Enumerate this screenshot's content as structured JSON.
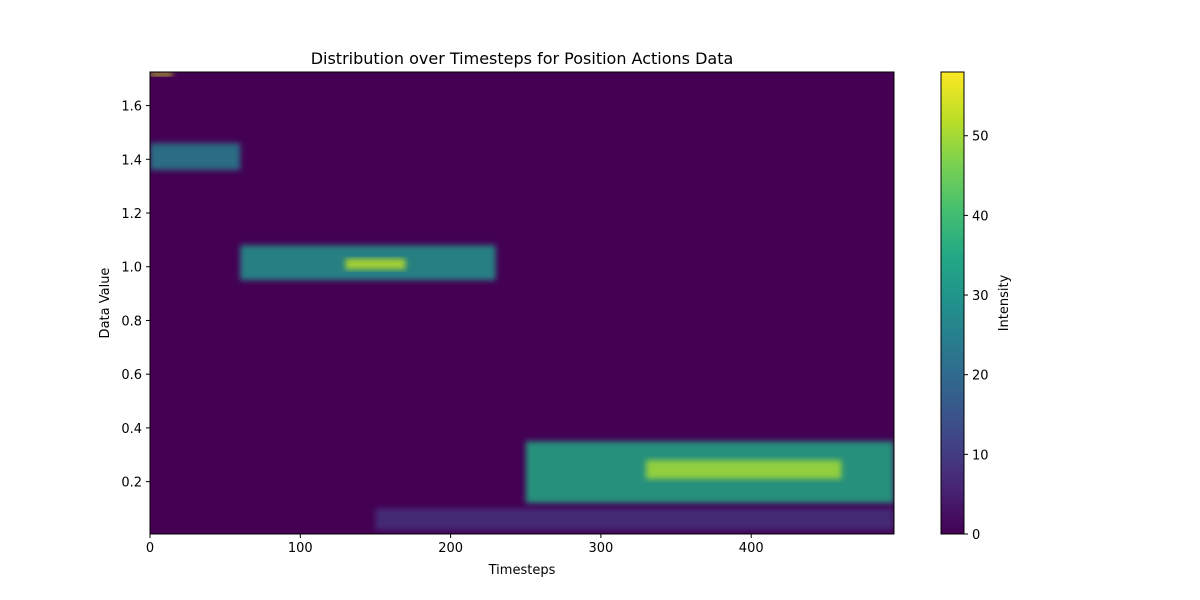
{
  "chart_data": {
    "type": "heatmap",
    "title": "Distribution over Timesteps for Position Actions Data",
    "xlabel": "Timesteps",
    "ylabel": "Data Value",
    "xlim": [
      0,
      495
    ],
    "ylim": [
      0.005,
      1.725
    ],
    "x_ticks": [
      0,
      100,
      200,
      300,
      400
    ],
    "y_ticks": [
      0.2,
      0.4,
      0.6,
      0.8,
      1.0,
      1.2,
      1.4,
      1.6
    ],
    "x_tick_labels": [
      "0",
      "100",
      "200",
      "300",
      "400"
    ],
    "y_tick_labels": [
      "0.2",
      "0.4",
      "0.6",
      "0.8",
      "1.0",
      "1.2",
      "1.4",
      "1.6"
    ],
    "colormap": "viridis",
    "colorbar": {
      "label": "Intensity",
      "range": [
        0,
        58
      ],
      "ticks": [
        0,
        10,
        20,
        30,
        40,
        50
      ],
      "tick_labels": [
        "0",
        "10",
        "20",
        "30",
        "40",
        "50"
      ]
    },
    "grid": false,
    "regions": [
      {
        "x": [
          0,
          15
        ],
        "y": [
          1.71,
          1.725
        ],
        "intensity": 55
      },
      {
        "x": [
          0,
          60
        ],
        "y": [
          1.36,
          1.46
        ],
        "intensity": 25
      },
      {
        "x": [
          60,
          230
        ],
        "y": [
          0.95,
          1.08
        ],
        "intensity": 30
      },
      {
        "x": [
          130,
          170
        ],
        "y": [
          0.99,
          1.03
        ],
        "intensity": 52
      },
      {
        "x": [
          250,
          495
        ],
        "y": [
          0.12,
          0.35
        ],
        "intensity": 35
      },
      {
        "x": [
          330,
          460
        ],
        "y": [
          0.21,
          0.28
        ],
        "intensity": 50
      },
      {
        "x": [
          150,
          495
        ],
        "y": [
          0.02,
          0.1
        ],
        "intensity": 8
      }
    ]
  }
}
